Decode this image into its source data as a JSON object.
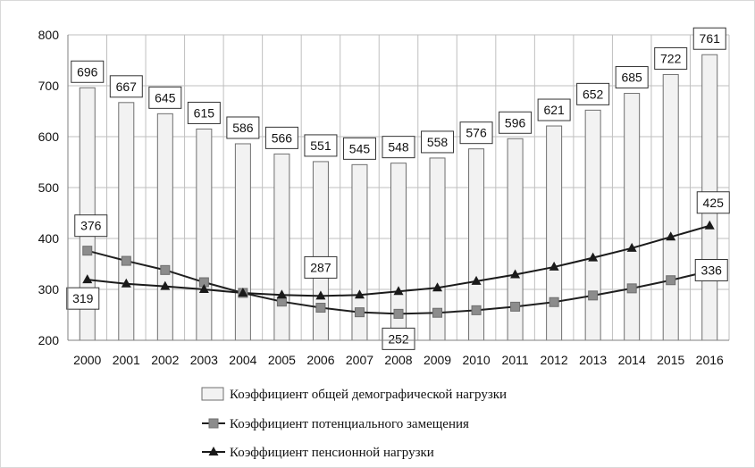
{
  "chart_data": {
    "type": "bar",
    "categories": [
      "2000",
      "2001",
      "2002",
      "2003",
      "2004",
      "2005",
      "2006",
      "2007",
      "2008",
      "2009",
      "2010",
      "2011",
      "2012",
      "2013",
      "2014",
      "2015",
      "2016"
    ],
    "ylim": [
      200,
      800
    ],
    "yticks": [
      200,
      300,
      400,
      500,
      600,
      700,
      800
    ],
    "grid": true,
    "legend_position": "bottom",
    "series": [
      {
        "name": "Коэффициент общей демографической нагрузки",
        "kind": "bar",
        "color": "#f2f2f2",
        "values": [
          696,
          667,
          645,
          615,
          586,
          566,
          551,
          545,
          548,
          558,
          576,
          596,
          621,
          652,
          685,
          722,
          761
        ],
        "labels": [
          "696",
          "667",
          "645",
          "615",
          "586",
          "566",
          "551",
          "545",
          "548",
          "558",
          "576",
          "596",
          "621",
          "652",
          "685",
          "722",
          "761"
        ]
      },
      {
        "name": "Коэффициент потенциального замещения",
        "kind": "line",
        "marker": "square",
        "color": "#8c8c8c",
        "values": [
          376,
          356,
          338,
          314,
          293,
          276,
          264,
          255,
          252,
          254,
          259,
          266,
          275,
          288,
          302,
          318,
          336
        ],
        "labels": {
          "0": "376",
          "8": "252",
          "16": "336"
        }
      },
      {
        "name": "Коэффициент пенсионной нагрузки",
        "kind": "line",
        "marker": "triangle",
        "color": "#1a1a1a",
        "values": [
          319,
          311,
          306,
          300,
          293,
          289,
          287,
          289,
          296,
          303,
          316,
          329,
          344,
          362,
          381,
          403,
          425
        ],
        "labels": {
          "0": "319",
          "6": "287",
          "16": "425"
        }
      }
    ]
  }
}
